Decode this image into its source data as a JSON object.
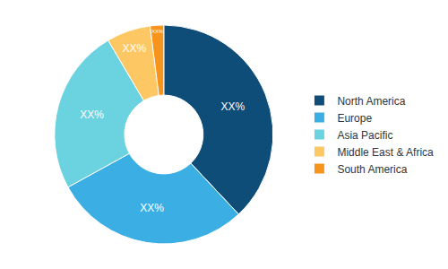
{
  "chart_data": {
    "type": "pie",
    "categories": [
      "North America",
      "Europe",
      "Asia Pacific",
      "Middle East & Africa",
      "South America"
    ],
    "values": [
      38,
      29,
      24.5,
      6.5,
      2
    ],
    "value_labels": [
      "XX%",
      "XX%",
      "XX%",
      "XX%",
      "XX%"
    ],
    "colors": [
      "#0e4d78",
      "#3bafe3",
      "#6bd2df",
      "#fdc863",
      "#f7941d"
    ],
    "data_labels": true,
    "legend": "right"
  }
}
